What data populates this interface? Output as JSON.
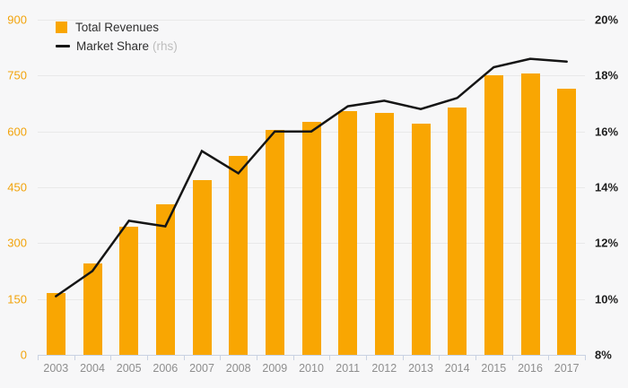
{
  "legend": {
    "items": [
      {
        "label": "Total Revenues",
        "color": "#F9A602"
      },
      {
        "label": "Market Share",
        "suffix": "(rhs)",
        "color": "#151515"
      }
    ]
  },
  "chart_data": {
    "type": "bar",
    "title": "",
    "categories": [
      "2003",
      "2004",
      "2005",
      "2006",
      "2007",
      "2008",
      "2009",
      "2010",
      "2011",
      "2012",
      "2013",
      "2014",
      "2015",
      "2016",
      "2017"
    ],
    "series": [
      {
        "name": "Total Revenues",
        "type": "bar",
        "axis": "left",
        "color": "#F9A602",
        "values": [
          165,
          245,
          345,
          405,
          470,
          535,
          605,
          625,
          655,
          650,
          620,
          665,
          750,
          755,
          715
        ]
      },
      {
        "name": "Market Share (rhs)",
        "type": "line",
        "axis": "right",
        "color": "#151515",
        "unit": "%",
        "values": [
          10.1,
          11.0,
          12.8,
          12.6,
          15.3,
          14.5,
          16.0,
          16.0,
          16.9,
          17.1,
          16.8,
          17.2,
          18.3,
          18.6,
          18.5
        ]
      }
    ],
    "left_axis": {
      "min": 0,
      "max": 900,
      "step": 150,
      "tick_labels": [
        "900",
        "750",
        "600",
        "450",
        "300",
        "150",
        "0"
      ],
      "label_color": "#F2A30B"
    },
    "right_axis": {
      "min": 8,
      "max": 20,
      "step": 2,
      "tick_labels": [
        "20%",
        "18%",
        "16%",
        "14%",
        "12%",
        "10%",
        "8%"
      ],
      "label_color": "#1F1F1F"
    },
    "grid": true,
    "legend_position": "top-left",
    "background_color": "#F7F7F8",
    "gridline_color": "#E9E9E9",
    "axisline_color": "#C9D2E2",
    "x_label_color": "#8E8E8E"
  }
}
